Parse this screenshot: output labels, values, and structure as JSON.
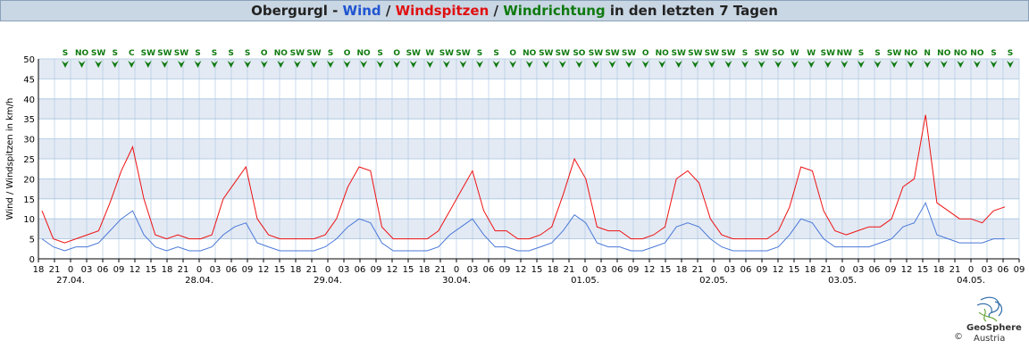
{
  "title": {
    "location": "Obergurgl - ",
    "wind": "Wind",
    "sep1": " / ",
    "gusts": "Windspitzen",
    "sep2": " / ",
    "direction": "Windrichtung",
    "suffix": " in den letzten 7 Tagen"
  },
  "chart_data": {
    "type": "line",
    "title": "Obergurgl - Wind / Windspitzen / Windrichtung in den letzten 7 Tagen",
    "ylabel": "Wind / Windspitzen in km/h",
    "ylim": [
      0,
      50
    ],
    "yticks": [
      0,
      5,
      10,
      15,
      20,
      25,
      30,
      35,
      40,
      45,
      50
    ],
    "grid": true,
    "hour_ticks": [
      "18",
      "21",
      "0",
      "03",
      "06",
      "09",
      "12",
      "15",
      "18",
      "21",
      "0",
      "03",
      "06",
      "09",
      "12",
      "15",
      "18",
      "21",
      "0",
      "03",
      "06",
      "09",
      "12",
      "15",
      "18",
      "21",
      "0",
      "03",
      "06",
      "09",
      "12",
      "15",
      "18",
      "21",
      "0",
      "03",
      "06",
      "09",
      "12",
      "15",
      "18",
      "21",
      "0",
      "03",
      "06",
      "09",
      "12",
      "15",
      "18",
      "21",
      "0",
      "03",
      "06",
      "09",
      "12",
      "15",
      "18",
      "21",
      "0",
      "03",
      "06",
      "09"
    ],
    "date_labels": [
      "27.04.",
      "28.04.",
      "29.04.",
      "30.04.",
      "01.05.",
      "02.05.",
      "03.05.",
      "04.05."
    ],
    "series": [
      {
        "name": "Windspitzen",
        "color": "#ee1111",
        "values": [
          12,
          5,
          4,
          5,
          6,
          7,
          14,
          22,
          28,
          15,
          6,
          5,
          6,
          5,
          5,
          6,
          15,
          19,
          23,
          10,
          6,
          5,
          5,
          5,
          5,
          6,
          10,
          18,
          23,
          22,
          8,
          5,
          5,
          5,
          5,
          7,
          12,
          17,
          22,
          12,
          7,
          7,
          5,
          5,
          6,
          8,
          16,
          25,
          20,
          8,
          7,
          7,
          5,
          5,
          6,
          8,
          20,
          22,
          19,
          10,
          6,
          5,
          5,
          5,
          5,
          7,
          13,
          23,
          22,
          12,
          7,
          6,
          7,
          8,
          8,
          10,
          18,
          20,
          36,
          14,
          12,
          10,
          10,
          9,
          12,
          13
        ]
      },
      {
        "name": "Wind",
        "color": "#4a78d8",
        "values": [
          5,
          3,
          2,
          3,
          3,
          4,
          7,
          10,
          12,
          6,
          3,
          2,
          3,
          2,
          2,
          3,
          6,
          8,
          9,
          4,
          3,
          2,
          2,
          2,
          2,
          3,
          5,
          8,
          10,
          9,
          4,
          2,
          2,
          2,
          2,
          3,
          6,
          8,
          10,
          6,
          3,
          3,
          2,
          2,
          3,
          4,
          7,
          11,
          9,
          4,
          3,
          3,
          2,
          2,
          3,
          4,
          8,
          9,
          8,
          5,
          3,
          2,
          2,
          2,
          2,
          3,
          6,
          10,
          9,
          5,
          3,
          3,
          3,
          3,
          4,
          5,
          8,
          9,
          14,
          6,
          5,
          4,
          4,
          4,
          5,
          5
        ]
      }
    ],
    "direction_labels": [
      "S",
      "NO",
      "SW",
      "S",
      "C",
      "SW",
      "SW",
      "SW",
      "S",
      "S",
      "S",
      "S",
      "O",
      "NO",
      "SW",
      "SW",
      "S",
      "O",
      "NO",
      "S",
      "O",
      "SW",
      "W",
      "SW",
      "SW",
      "S",
      "S",
      "O",
      "NO",
      "SW",
      "SW",
      "SO",
      "SW",
      "SW",
      "SW",
      "O",
      "NO",
      "SW",
      "SW",
      "SW",
      "SW",
      "S",
      "SW",
      "SO",
      "W",
      "W",
      "SW",
      "NW",
      "S",
      "S",
      "SW",
      "NO",
      "N",
      "NO",
      "NO",
      "NO",
      "S",
      "S"
    ]
  },
  "logo": {
    "name": "GeoSphere",
    "sub": "Austria",
    "copyright": "©"
  },
  "colors": {
    "band": "#e3eaf4",
    "grid": "#a8c4e0",
    "axis": "#000000",
    "arrow": "#0f7a0f"
  }
}
